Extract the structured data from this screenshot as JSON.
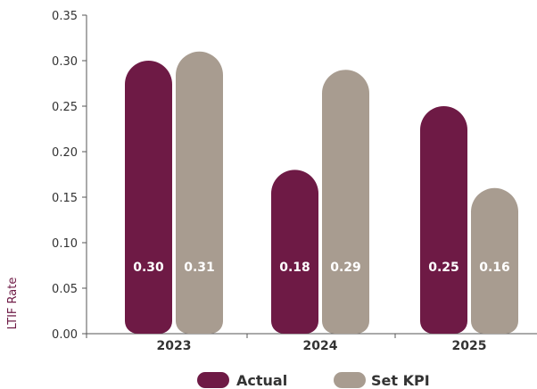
{
  "chart_data": {
    "type": "bar",
    "categories": [
      "2023",
      "2024",
      "2025"
    ],
    "series": [
      {
        "name": "Actual",
        "values": [
          0.3,
          0.18,
          0.25
        ],
        "labels": [
          "0.30",
          "0.18",
          "0.25"
        ],
        "color": "#6e1a45"
      },
      {
        "name": "Set KPI",
        "values": [
          0.31,
          0.29,
          0.16
        ],
        "labels": [
          "0.31",
          "0.29",
          "0.16"
        ],
        "color": "#a89c90"
      }
    ],
    "ylabel": "LTIF Rate",
    "xlabel": "",
    "ylim": [
      0,
      0.35
    ],
    "yticks": [
      "0.00",
      "0.05",
      "0.10",
      "0.15",
      "0.20",
      "0.25",
      "0.30",
      "0.35"
    ],
    "grid": false,
    "legend": "bottom"
  }
}
